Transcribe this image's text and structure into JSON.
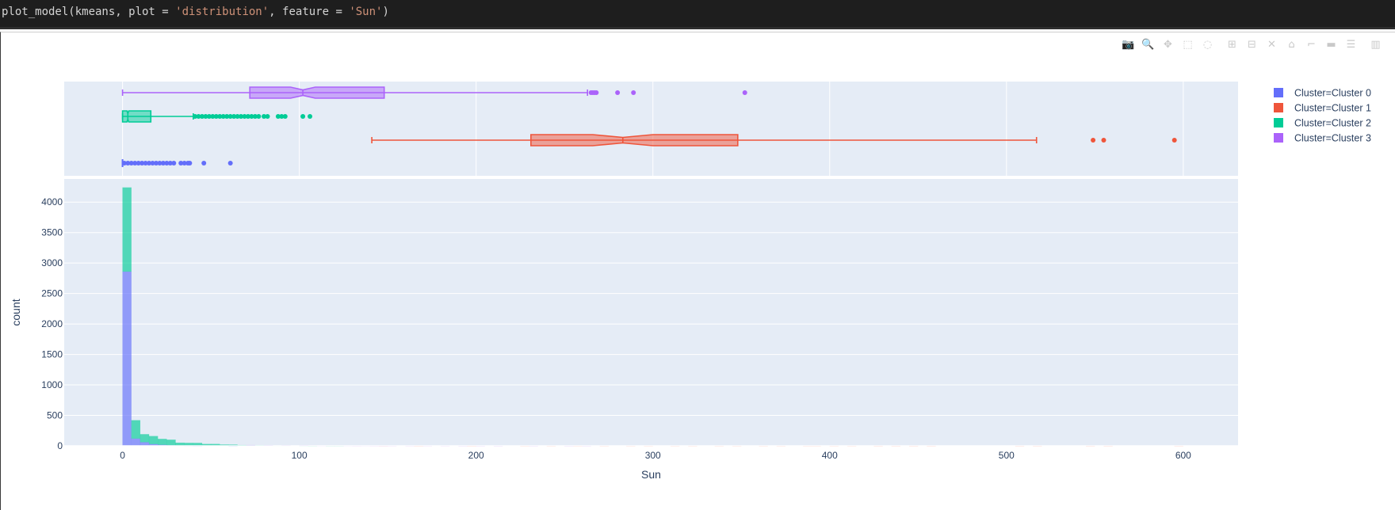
{
  "code": {
    "prefix": "plot_model(kmeans, plot = ",
    "arg1": "'distribution'",
    "mid": ", feature = ",
    "arg2": "'Sun'",
    "suffix": ")"
  },
  "toolbar": [
    {
      "name": "camera-icon",
      "glyph": "📷"
    },
    {
      "name": "zoom-icon",
      "glyph": "🔍"
    },
    {
      "name": "pan-icon",
      "glyph": "✥"
    },
    {
      "name": "box-select-icon",
      "glyph": "⬚"
    },
    {
      "name": "lasso-select-icon",
      "glyph": "◌"
    },
    {
      "name": "zoom-in-icon",
      "glyph": "⊞"
    },
    {
      "name": "zoom-out-icon",
      "glyph": "⊟"
    },
    {
      "name": "autoscale-icon",
      "glyph": "✕"
    },
    {
      "name": "reset-axes-icon",
      "glyph": "⌂"
    },
    {
      "name": "spike-lines-icon",
      "glyph": "⌐"
    },
    {
      "name": "hover-closest-icon",
      "glyph": "▬"
    },
    {
      "name": "hover-compare-icon",
      "glyph": "☰"
    },
    {
      "name": "plotly-logo-icon",
      "glyph": "▥"
    }
  ],
  "colors": {
    "plot_bg": "#e5ecf6",
    "grid": "#ffffff",
    "Cluster 0": "#636efa",
    "Cluster 1": "#ef553b",
    "Cluster 2": "#00cc96",
    "Cluster 3": "#ab63fa"
  },
  "chart_data": {
    "type": "histogram",
    "xlabel": "Sun",
    "ylabel": "count",
    "xlim": [
      -33,
      631
    ],
    "ylim": [
      0,
      4380
    ],
    "x_ticks": [
      0,
      100,
      200,
      300,
      400,
      500,
      600
    ],
    "y_ticks": [
      0,
      500,
      1000,
      1500,
      2000,
      2500,
      3000,
      3500,
      4000
    ],
    "grid": true,
    "legend_position": "top-right",
    "legend": [
      "Cluster=Cluster 0",
      "Cluster=Cluster 1",
      "Cluster=Cluster 2",
      "Cluster=Cluster 3"
    ],
    "marginal_boxes": [
      {
        "name": "Cluster=Cluster 3",
        "lower_fence": 0,
        "q1": 72,
        "median": 102,
        "q3": 148,
        "upper_fence": 263,
        "notch_low": 95,
        "notch_high": 109,
        "outliers": [
          265,
          266,
          267,
          268,
          280,
          289,
          352
        ]
      },
      {
        "name": "Cluster=Cluster 2",
        "lower_fence": 0,
        "q1": 0,
        "median": 3,
        "q3": 16,
        "upper_fence": 40,
        "notch_low": 2.5,
        "notch_high": 3.5,
        "outliers": [
          41,
          43,
          45,
          47,
          49,
          51,
          53,
          55,
          57,
          59,
          61,
          63,
          65,
          67,
          69,
          71,
          73,
          75,
          77,
          80,
          82,
          88,
          90,
          92,
          102,
          106
        ]
      },
      {
        "name": "Cluster=Cluster 1",
        "lower_fence": 141,
        "q1": 231,
        "median": 283,
        "q3": 348,
        "upper_fence": 517,
        "notch_low": 266,
        "notch_high": 300,
        "outliers": [
          549,
          555,
          595
        ]
      },
      {
        "name": "Cluster=Cluster 0",
        "lower_fence": 0,
        "q1": 0,
        "median": 0,
        "q3": 0,
        "upper_fence": 0,
        "notch_low": 0,
        "notch_high": 0,
        "outliers": [
          1,
          3,
          5,
          7,
          9,
          11,
          13,
          15,
          17,
          19,
          21,
          23,
          25,
          27,
          29,
          33,
          35,
          37,
          38,
          46,
          61
        ]
      }
    ],
    "bin_width": 5,
    "series": [
      {
        "name": "Cluster=Cluster 0",
        "bins": [
          [
            0,
            2860
          ],
          [
            5,
            120
          ],
          [
            10,
            60
          ],
          [
            15,
            30
          ],
          [
            20,
            18
          ],
          [
            25,
            10
          ],
          [
            30,
            6
          ],
          [
            35,
            3
          ],
          [
            40,
            2
          ],
          [
            60,
            1
          ]
        ]
      },
      {
        "name": "Cluster=Cluster 2",
        "bins": [
          [
            0,
            1380
          ],
          [
            5,
            300
          ],
          [
            10,
            130
          ],
          [
            15,
            130
          ],
          [
            20,
            95
          ],
          [
            25,
            90
          ],
          [
            30,
            45
          ],
          [
            35,
            45
          ],
          [
            40,
            45
          ],
          [
            45,
            30
          ],
          [
            50,
            30
          ],
          [
            55,
            20
          ],
          [
            60,
            18
          ],
          [
            65,
            12
          ],
          [
            70,
            10
          ],
          [
            75,
            8
          ],
          [
            80,
            6
          ],
          [
            85,
            5
          ],
          [
            90,
            5
          ],
          [
            100,
            3
          ],
          [
            105,
            2
          ],
          [
            115,
            2
          ],
          [
            120,
            2
          ]
        ]
      },
      {
        "name": "Cluster=Cluster 3",
        "bins": [
          [
            70,
            2
          ],
          [
            80,
            3
          ],
          [
            90,
            3
          ],
          [
            100,
            5
          ],
          [
            105,
            4
          ],
          [
            110,
            3
          ],
          [
            115,
            3
          ],
          [
            120,
            3
          ],
          [
            125,
            3
          ],
          [
            130,
            2
          ],
          [
            135,
            3
          ],
          [
            140,
            2
          ],
          [
            145,
            2
          ],
          [
            150,
            2
          ],
          [
            160,
            2
          ],
          [
            170,
            2
          ],
          [
            180,
            2
          ],
          [
            190,
            1
          ],
          [
            200,
            1
          ],
          [
            210,
            1
          ],
          [
            230,
            1
          ],
          [
            250,
            1
          ],
          [
            260,
            1
          ]
        ]
      },
      {
        "name": "Cluster=Cluster 1",
        "bins": [
          [
            145,
            1
          ],
          [
            165,
            1
          ],
          [
            195,
            1
          ],
          [
            225,
            2
          ],
          [
            240,
            2
          ],
          [
            255,
            2
          ],
          [
            270,
            2
          ],
          [
            285,
            2
          ],
          [
            295,
            2
          ],
          [
            310,
            2
          ],
          [
            320,
            2
          ],
          [
            335,
            2
          ],
          [
            345,
            2
          ],
          [
            360,
            2
          ],
          [
            370,
            2
          ],
          [
            385,
            2
          ],
          [
            390,
            2
          ],
          [
            400,
            2
          ],
          [
            410,
            2
          ],
          [
            425,
            1
          ],
          [
            435,
            1
          ],
          [
            445,
            1
          ],
          [
            455,
            1
          ],
          [
            505,
            1
          ],
          [
            515,
            1
          ],
          [
            545,
            1
          ],
          [
            555,
            1
          ],
          [
            595,
            1
          ]
        ]
      }
    ]
  }
}
